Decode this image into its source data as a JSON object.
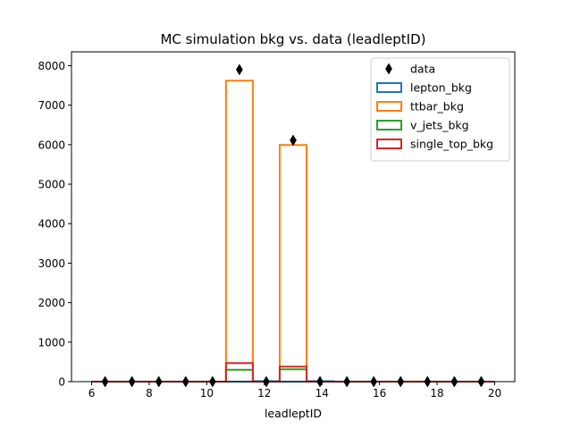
{
  "chart_data": {
    "type": "bar",
    "title": "MC simulation bkg vs. data (leadleptID)",
    "xlabel": "leadleptID",
    "ylabel": "",
    "xlim": [
      5.3,
      20.7
    ],
    "ylim": [
      0,
      8350
    ],
    "xticks": [
      6,
      8,
      10,
      12,
      14,
      16,
      18,
      20
    ],
    "yticks": [
      0,
      1000,
      2000,
      3000,
      4000,
      5000,
      6000,
      7000,
      8000
    ],
    "grid": false,
    "legend_position": "top-right",
    "bin_edges": [
      6.0,
      6.933,
      7.867,
      8.8,
      9.733,
      10.667,
      11.6,
      12.533,
      13.467,
      14.4,
      15.333,
      16.267,
      17.2,
      18.133,
      19.067,
      20.0
    ],
    "series": [
      {
        "name": "lepton_bkg",
        "kind": "step",
        "color": "#1f77b4",
        "values": [
          0,
          0,
          0,
          0,
          0,
          0,
          10,
          0,
          10,
          0,
          0,
          0,
          0,
          0,
          0
        ]
      },
      {
        "name": "ttbar_bkg",
        "kind": "step",
        "color": "#ff7f0e",
        "values": [
          0,
          0,
          0,
          0,
          0,
          7620,
          0,
          5990,
          0,
          0,
          0,
          0,
          0,
          0,
          0
        ]
      },
      {
        "name": "v_jets_bkg",
        "kind": "step",
        "color": "#2ca02c",
        "values": [
          0,
          0,
          0,
          0,
          0,
          300,
          0,
          310,
          0,
          0,
          0,
          0,
          0,
          0,
          0
        ]
      },
      {
        "name": "single_top_bkg",
        "kind": "step",
        "color": "#d62728",
        "values": [
          0,
          0,
          0,
          0,
          0,
          470,
          0,
          380,
          0,
          0,
          0,
          0,
          0,
          0,
          0
        ]
      },
      {
        "name": "data",
        "kind": "points",
        "marker": "thin-diamond",
        "color": "#000000",
        "x": [
          6.467,
          7.4,
          8.333,
          9.267,
          10.2,
          11.133,
          12.067,
          13.0,
          13.933,
          14.867,
          15.8,
          16.733,
          17.667,
          18.6,
          19.533
        ],
        "y": [
          0,
          0,
          0,
          0,
          0,
          7900,
          0,
          6110,
          0,
          0,
          0,
          0,
          0,
          0,
          0
        ]
      }
    ]
  }
}
